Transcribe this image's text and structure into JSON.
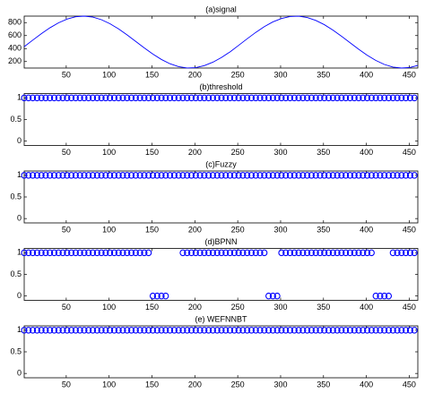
{
  "chart_data": [
    {
      "type": "line",
      "title": "(a)signal",
      "color": "#0000ff",
      "x": [
        1,
        11,
        21,
        31,
        41,
        51,
        61,
        71,
        81,
        91,
        101,
        111,
        121,
        131,
        141,
        151,
        161,
        171,
        181,
        191,
        201,
        211,
        221,
        231,
        241,
        251,
        261,
        271,
        281,
        291,
        301,
        311,
        321,
        331,
        341,
        351,
        361,
        371,
        381,
        391,
        401,
        411,
        421,
        431,
        441,
        451,
        460
      ],
      "values": [
        429,
        530,
        629,
        720,
        797,
        854,
        890,
        900,
        885,
        845,
        783,
        703,
        610,
        510,
        410,
        315,
        232,
        166,
        122,
        101,
        106,
        137,
        190,
        262,
        349,
        449,
        551,
        649,
        738,
        811,
        863,
        894,
        899,
        878,
        834,
        768,
        685,
        590,
        490,
        390,
        297,
        217,
        155,
        115,
        100,
        110,
        141
      ],
      "xlim": [
        1,
        460
      ],
      "xticks": [
        50,
        100,
        150,
        200,
        250,
        300,
        350,
        400,
        450
      ],
      "ylim": [
        100,
        900
      ],
      "yticks": [
        200,
        400,
        600,
        800
      ]
    },
    {
      "type": "scatter",
      "title": "(b)threshold",
      "color": "#0000ff",
      "x": [
        1,
        6,
        11,
        16,
        21,
        26,
        31,
        36,
        41,
        46,
        51,
        56,
        61,
        66,
        71,
        76,
        81,
        86,
        91,
        96,
        101,
        106,
        111,
        116,
        121,
        126,
        131,
        136,
        141,
        146,
        151,
        156,
        161,
        166,
        171,
        176,
        181,
        186,
        191,
        196,
        201,
        206,
        211,
        216,
        221,
        226,
        231,
        236,
        241,
        246,
        251,
        256,
        261,
        266,
        271,
        276,
        281,
        286,
        291,
        296,
        301,
        306,
        311,
        316,
        321,
        326,
        331,
        336,
        341,
        346,
        351,
        356,
        361,
        366,
        371,
        376,
        381,
        386,
        391,
        396,
        401,
        406,
        411,
        416,
        421,
        426,
        431,
        436,
        441,
        446,
        451,
        456
      ],
      "values": [
        1,
        1,
        1,
        1,
        1,
        1,
        1,
        1,
        1,
        1,
        1,
        1,
        1,
        1,
        1,
        1,
        1,
        1,
        1,
        1,
        1,
        1,
        1,
        1,
        1,
        1,
        1,
        1,
        1,
        1,
        1,
        1,
        1,
        1,
        1,
        1,
        1,
        1,
        1,
        1,
        1,
        1,
        1,
        1,
        1,
        1,
        1,
        1,
        1,
        1,
        1,
        1,
        1,
        1,
        1,
        1,
        1,
        1,
        1,
        1,
        1,
        1,
        1,
        1,
        1,
        1,
        1,
        1,
        1,
        1,
        1,
        1,
        1,
        1,
        1,
        1,
        1,
        1,
        1,
        1,
        1,
        1,
        1,
        1,
        1,
        1,
        1,
        1,
        1,
        1,
        1,
        1
      ],
      "xlim": [
        1,
        460
      ],
      "xticks": [
        50,
        100,
        150,
        200,
        250,
        300,
        350,
        400,
        450
      ],
      "ylim": [
        -0.1,
        1.1
      ],
      "yticks": [
        0,
        0.5,
        1
      ]
    },
    {
      "type": "scatter",
      "title": "(c)Fuzzy",
      "color": "#0000ff",
      "x": [
        1,
        6,
        11,
        16,
        21,
        26,
        31,
        36,
        41,
        46,
        51,
        56,
        61,
        66,
        71,
        76,
        81,
        86,
        91,
        96,
        101,
        106,
        111,
        116,
        121,
        126,
        131,
        136,
        141,
        146,
        151,
        156,
        161,
        166,
        171,
        176,
        181,
        186,
        191,
        196,
        201,
        206,
        211,
        216,
        221,
        226,
        231,
        236,
        241,
        246,
        251,
        256,
        261,
        266,
        271,
        276,
        281,
        286,
        291,
        296,
        301,
        306,
        311,
        316,
        321,
        326,
        331,
        336,
        341,
        346,
        351,
        356,
        361,
        366,
        371,
        376,
        381,
        386,
        391,
        396,
        401,
        406,
        411,
        416,
        421,
        426,
        431,
        436,
        441,
        446,
        451,
        456
      ],
      "values": [
        1,
        1,
        1,
        1,
        1,
        1,
        1,
        1,
        1,
        1,
        1,
        1,
        1,
        1,
        1,
        1,
        1,
        1,
        1,
        1,
        1,
        1,
        1,
        1,
        1,
        1,
        1,
        1,
        1,
        1,
        1,
        1,
        1,
        1,
        1,
        1,
        1,
        1,
        1,
        1,
        1,
        1,
        1,
        1,
        1,
        1,
        1,
        1,
        1,
        1,
        1,
        1,
        1,
        1,
        1,
        1,
        1,
        1,
        1,
        1,
        1,
        1,
        1,
        1,
        1,
        1,
        1,
        1,
        1,
        1,
        1,
        1,
        1,
        1,
        1,
        1,
        1,
        1,
        1,
        1,
        1,
        1,
        1,
        1,
        1,
        1,
        1,
        1,
        1,
        1,
        1,
        1
      ],
      "xlim": [
        1,
        460
      ],
      "xticks": [
        50,
        100,
        150,
        200,
        250,
        300,
        350,
        400,
        450
      ],
      "ylim": [
        -0.1,
        1.1
      ],
      "yticks": [
        0,
        0.5,
        1
      ]
    },
    {
      "type": "scatter",
      "title": "(d)BPNN",
      "color": "#0000ff",
      "x": [
        1,
        6,
        11,
        16,
        21,
        26,
        31,
        36,
        41,
        46,
        51,
        56,
        61,
        66,
        71,
        76,
        81,
        86,
        91,
        96,
        101,
        106,
        111,
        116,
        121,
        126,
        131,
        136,
        141,
        146,
        151,
        156,
        161,
        166,
        171,
        176,
        181,
        186,
        191,
        196,
        201,
        206,
        211,
        216,
        221,
        226,
        231,
        236,
        241,
        246,
        251,
        256,
        261,
        266,
        271,
        276,
        281,
        286,
        291,
        296,
        301,
        306,
        311,
        316,
        321,
        326,
        331,
        336,
        341,
        346,
        351,
        356,
        361,
        366,
        371,
        376,
        381,
        386,
        391,
        396,
        401,
        406,
        411,
        416,
        421,
        426,
        431,
        436,
        441,
        446,
        451,
        456
      ],
      "values": [
        1,
        1,
        1,
        1,
        1,
        1,
        1,
        1,
        1,
        1,
        1,
        1,
        1,
        1,
        1,
        1,
        1,
        1,
        1,
        1,
        1,
        1,
        1,
        1,
        1,
        1,
        1,
        1,
        1,
        1,
        0,
        0,
        0,
        0,
        null,
        null,
        null,
        1,
        1,
        1,
        1,
        1,
        1,
        1,
        1,
        1,
        1,
        1,
        1,
        1,
        1,
        1,
        1,
        1,
        1,
        1,
        1,
        0,
        0,
        0,
        1,
        1,
        1,
        1,
        1,
        1,
        1,
        1,
        1,
        1,
        1,
        1,
        1,
        1,
        1,
        1,
        1,
        1,
        1,
        1,
        1,
        1,
        0,
        0,
        0,
        0,
        1,
        1,
        1,
        1,
        1,
        1
      ],
      "xlim": [
        1,
        460
      ],
      "xticks": [
        50,
        100,
        150,
        200,
        250,
        300,
        350,
        400,
        450
      ],
      "ylim": [
        -0.1,
        1.1
      ],
      "yticks": [
        0,
        0.5,
        1
      ]
    },
    {
      "type": "scatter",
      "title": "(e) WEFNNBT",
      "color": "#0000ff",
      "x": [
        1,
        6,
        11,
        16,
        21,
        26,
        31,
        36,
        41,
        46,
        51,
        56,
        61,
        66,
        71,
        76,
        81,
        86,
        91,
        96,
        101,
        106,
        111,
        116,
        121,
        126,
        131,
        136,
        141,
        146,
        151,
        156,
        161,
        166,
        171,
        176,
        181,
        186,
        191,
        196,
        201,
        206,
        211,
        216,
        221,
        226,
        231,
        236,
        241,
        246,
        251,
        256,
        261,
        266,
        271,
        276,
        281,
        286,
        291,
        296,
        301,
        306,
        311,
        316,
        321,
        326,
        331,
        336,
        341,
        346,
        351,
        356,
        361,
        366,
        371,
        376,
        381,
        386,
        391,
        396,
        401,
        406,
        411,
        416,
        421,
        426,
        431,
        436,
        441,
        446,
        451,
        456
      ],
      "values": [
        1,
        1,
        1,
        1,
        1,
        1,
        1,
        1,
        1,
        1,
        1,
        1,
        1,
        1,
        1,
        1,
        1,
        1,
        1,
        1,
        1,
        1,
        1,
        1,
        1,
        1,
        1,
        1,
        1,
        1,
        1,
        1,
        1,
        1,
        1,
        1,
        1,
        1,
        1,
        1,
        1,
        1,
        1,
        1,
        1,
        1,
        1,
        1,
        1,
        1,
        1,
        1,
        1,
        1,
        1,
        1,
        1,
        1,
        1,
        1,
        1,
        1,
        1,
        1,
        1,
        1,
        1,
        1,
        1,
        1,
        1,
        1,
        1,
        1,
        1,
        1,
        1,
        1,
        1,
        1,
        1,
        1,
        1,
        1,
        1,
        1,
        1,
        1,
        1,
        1,
        1,
        1
      ],
      "xlim": [
        1,
        460
      ],
      "xticks": [
        50,
        100,
        150,
        200,
        250,
        300,
        350,
        400,
        450
      ],
      "ylim": [
        -0.1,
        1.1
      ],
      "yticks": [
        0,
        0.5,
        1
      ]
    }
  ]
}
